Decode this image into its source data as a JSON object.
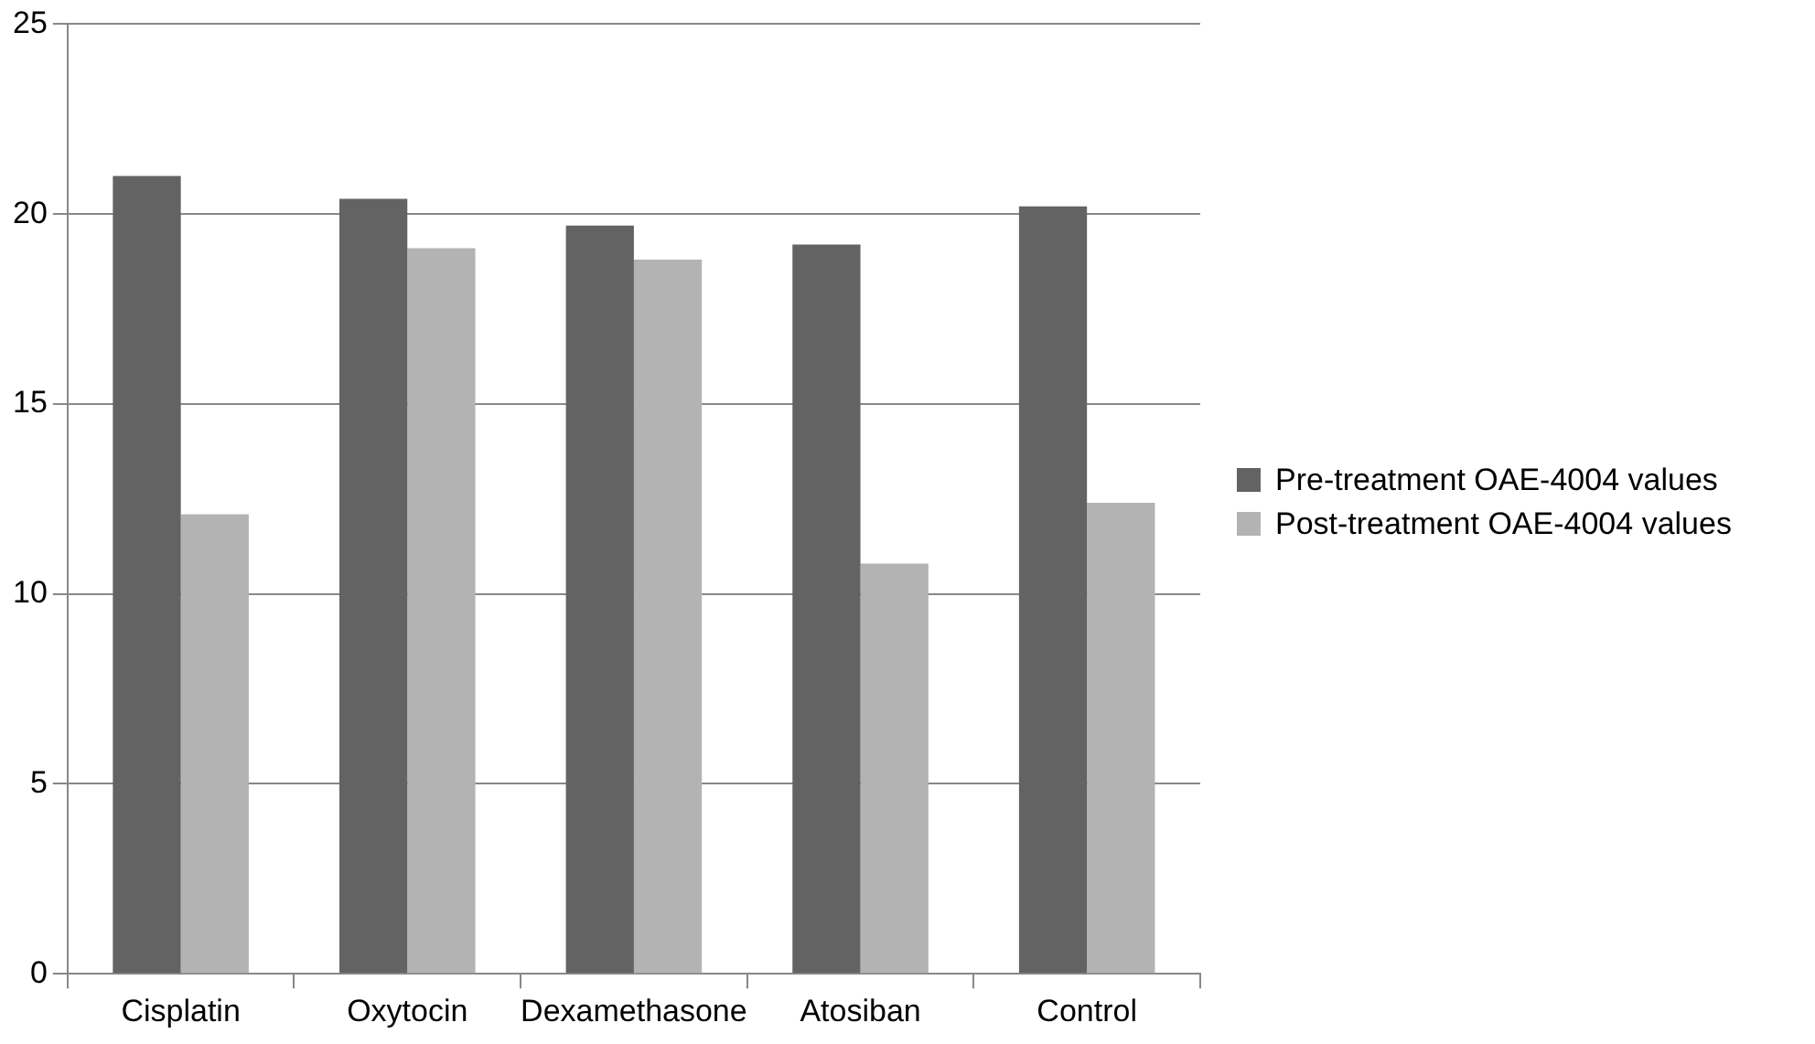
{
  "chart_data": {
    "type": "bar",
    "categories": [
      "Cisplatin",
      "Oxytocin",
      "Dexamethasone",
      "Atosiban",
      "Control"
    ],
    "series": [
      {
        "name": "Pre-treatment OAE-4004 values",
        "color": "#636363",
        "values": [
          21.0,
          20.4,
          19.7,
          19.2,
          20.2
        ]
      },
      {
        "name": "Post-treatment OAE-4004 values",
        "color": "#b3b3b3",
        "values": [
          12.1,
          19.1,
          18.8,
          10.8,
          12.4
        ]
      }
    ],
    "ylim": [
      0,
      25
    ],
    "yticks": [
      0,
      5,
      10,
      15,
      20,
      25
    ],
    "grid": "y",
    "legend": "right"
  }
}
